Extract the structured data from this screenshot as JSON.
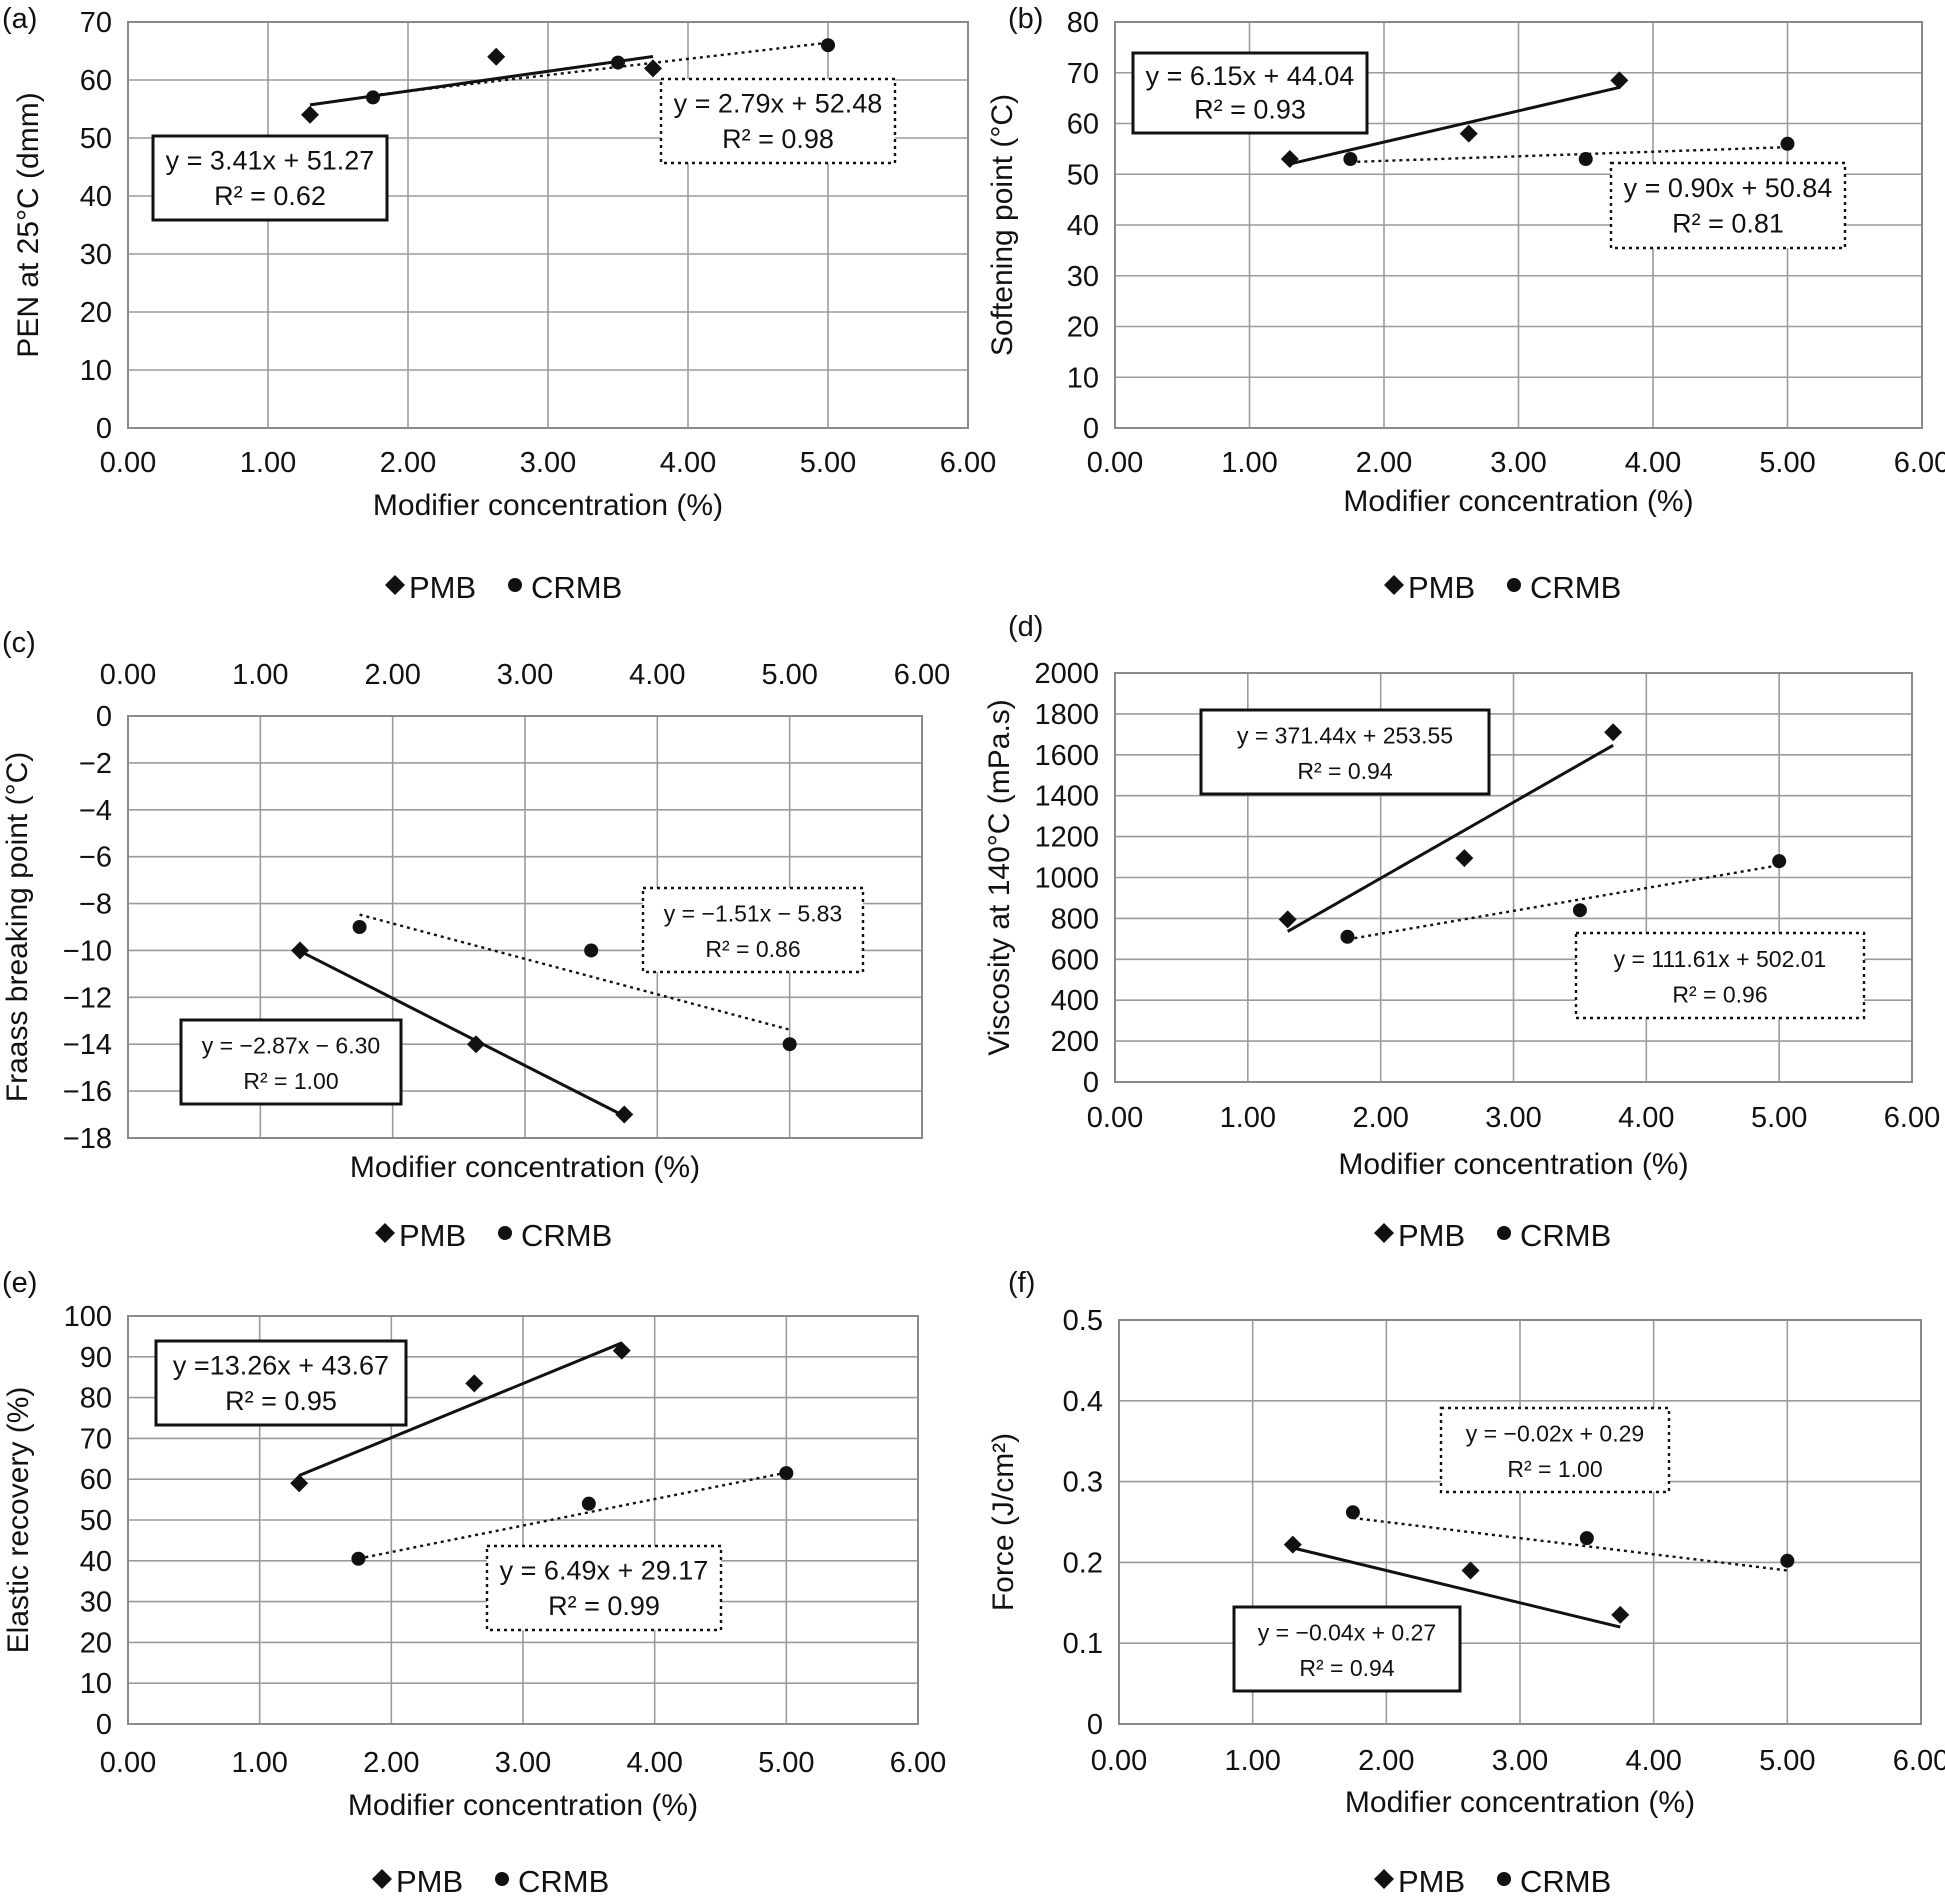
{
  "legend": {
    "pmb_label": "PMB",
    "crmb_label": "CRMB",
    "pmb_marker": "◆",
    "crmb_marker": "●"
  },
  "chart_data": [
    {
      "panel": "(a)",
      "type": "scatter",
      "xlabel": "Modifier concentration (%)",
      "ylabel": "PEN at 25°C (dmm)",
      "xlim": [
        0,
        6
      ],
      "ylim": [
        0,
        70
      ],
      "x_axis_position": "bottom",
      "grid": true,
      "legend_position": "bottom",
      "x_ticks": [
        "0.00",
        "1.00",
        "2.00",
        "3.00",
        "4.00",
        "5.00",
        "6.00"
      ],
      "y_ticks": [
        "0",
        "10",
        "20",
        "30",
        "40",
        "50",
        "60",
        "70"
      ],
      "series": [
        {
          "name": "PMB",
          "marker": "diamond",
          "x": [
            1.3,
            2.63,
            3.75
          ],
          "y": [
            54,
            64,
            62
          ],
          "trend": {
            "line": "solid",
            "eq": "y = 3.41x + 51.27",
            "r2": "R² = 0.62",
            "slope": 3.41,
            "intercept": 51.27,
            "x": [
              1.3,
              3.75
            ]
          }
        },
        {
          "name": "CRMB",
          "marker": "circle",
          "x": [
            1.75,
            3.5,
            5.0
          ],
          "y": [
            57,
            63,
            66
          ],
          "trend": {
            "line": "dotted",
            "eq": "y = 2.79x + 52.48",
            "r2": "R² = 0.98",
            "slope": 2.79,
            "intercept": 52.48,
            "x": [
              1.75,
              5.0
            ]
          }
        }
      ]
    },
    {
      "panel": "(b)",
      "type": "scatter",
      "xlabel": "Modifier concentration (%)",
      "ylabel": "Softening point (°C)",
      "xlim": [
        0,
        6
      ],
      "ylim": [
        0,
        80
      ],
      "x_axis_position": "bottom",
      "grid": true,
      "legend_position": "bottom",
      "x_ticks": [
        "0.00",
        "1.00",
        "2.00",
        "3.00",
        "4.00",
        "5.00",
        "6.00"
      ],
      "y_ticks": [
        "0",
        "10",
        "20",
        "30",
        "40",
        "50",
        "60",
        "70",
        "80"
      ],
      "series": [
        {
          "name": "PMB",
          "marker": "diamond",
          "x": [
            1.3,
            2.63,
            3.75
          ],
          "y": [
            53,
            58,
            68.5
          ],
          "trend": {
            "line": "solid",
            "eq": "y = 6.15x + 44.04",
            "r2": "R² = 0.93",
            "slope": 6.15,
            "intercept": 44.04,
            "x": [
              1.3,
              3.75
            ]
          }
        },
        {
          "name": "CRMB",
          "marker": "circle",
          "x": [
            1.75,
            3.5,
            5.0
          ],
          "y": [
            53,
            53,
            56
          ],
          "trend": {
            "line": "dotted",
            "eq": "y = 0.90x + 50.84",
            "r2": "R² = 0.81",
            "slope": 0.9,
            "intercept": 50.84,
            "x": [
              1.75,
              5.0
            ]
          }
        }
      ]
    },
    {
      "panel": "(c)",
      "type": "scatter",
      "xlabel": "Modifier concentration (%)",
      "ylabel": "Fraass breaking point (°C)",
      "xlim": [
        0,
        6
      ],
      "ylim": [
        -18,
        0
      ],
      "x_axis_position": "top",
      "grid": true,
      "legend_position": "bottom",
      "x_ticks": [
        "0.00",
        "1.00",
        "2.00",
        "3.00",
        "4.00",
        "5.00",
        "6.00"
      ],
      "y_ticks": [
        "0",
        "−2",
        "−4",
        "−6",
        "−8",
        "−10",
        "−12",
        "−14",
        "−16",
        "−18"
      ],
      "series": [
        {
          "name": "PMB",
          "marker": "diamond",
          "x": [
            1.3,
            2.63,
            3.75
          ],
          "y": [
            -10,
            -14,
            -17
          ],
          "trend": {
            "line": "solid",
            "eq": "y = −2.87x − 6.30",
            "r2": "R² = 1.00",
            "slope": -2.87,
            "intercept": -6.3,
            "x": [
              1.3,
              3.75
            ]
          }
        },
        {
          "name": "CRMB",
          "marker": "circle",
          "x": [
            1.75,
            3.5,
            5.0
          ],
          "y": [
            -9,
            -10,
            -14
          ],
          "trend": {
            "line": "dotted",
            "eq": "y = −1.51x − 5.83",
            "r2": "R² = 0.86",
            "slope": -1.51,
            "intercept": -5.83,
            "x": [
              1.75,
              5.0
            ]
          }
        }
      ]
    },
    {
      "panel": "(d)",
      "type": "scatter",
      "xlabel": "Modifier concentration (%)",
      "ylabel": "Viscosity at 140°C (mPa.s)",
      "xlim": [
        0,
        6
      ],
      "ylim": [
        0,
        2000
      ],
      "x_axis_position": "bottom",
      "grid": true,
      "legend_position": "bottom",
      "x_ticks": [
        "0.00",
        "1.00",
        "2.00",
        "3.00",
        "4.00",
        "5.00",
        "6.00"
      ],
      "y_ticks": [
        "0",
        "200",
        "400",
        "600",
        "800",
        "1000",
        "1200",
        "1400",
        "1600",
        "1800",
        "2000"
      ],
      "series": [
        {
          "name": "PMB",
          "marker": "diamond",
          "x": [
            1.3,
            2.63,
            3.75
          ],
          "y": [
            795,
            1095,
            1710
          ],
          "trend": {
            "line": "solid",
            "eq": "y = 371.44x + 253.55",
            "r2": "R² = 0.94",
            "slope": 371.44,
            "intercept": 253.55,
            "x": [
              1.3,
              3.75
            ]
          }
        },
        {
          "name": "CRMB",
          "marker": "circle",
          "x": [
            1.75,
            3.5,
            5.0
          ],
          "y": [
            710,
            840,
            1080
          ],
          "trend": {
            "line": "dotted",
            "eq": "y = 111.61x + 502.01",
            "r2": "R² = 0.96",
            "slope": 111.61,
            "intercept": 502.01,
            "x": [
              1.75,
              5.0
            ]
          }
        }
      ]
    },
    {
      "panel": "(e)",
      "type": "scatter",
      "xlabel": "Modifier concentration (%)",
      "ylabel": "Elastic recovery (%)",
      "xlim": [
        0,
        6
      ],
      "ylim": [
        0,
        100
      ],
      "x_axis_position": "bottom",
      "grid": true,
      "legend_position": "bottom",
      "x_ticks": [
        "0.00",
        "1.00",
        "2.00",
        "3.00",
        "4.00",
        "5.00",
        "6.00"
      ],
      "y_ticks": [
        "0",
        "10",
        "20",
        "30",
        "40",
        "50",
        "60",
        "70",
        "80",
        "90",
        "100"
      ],
      "series": [
        {
          "name": "PMB",
          "marker": "diamond",
          "x": [
            1.3,
            2.63,
            3.75
          ],
          "y": [
            59,
            83.5,
            91.5
          ],
          "trend": {
            "line": "solid",
            "eq": "y =13.26x + 43.67",
            "r2": "R² = 0.95",
            "slope": 13.26,
            "intercept": 43.67,
            "x": [
              1.3,
              3.75
            ]
          }
        },
        {
          "name": "CRMB",
          "marker": "circle",
          "x": [
            1.75,
            3.5,
            5.0
          ],
          "y": [
            40.5,
            54,
            61.5
          ],
          "trend": {
            "line": "dotted",
            "eq": "y = 6.49x + 29.17",
            "r2": "R² = 0.99",
            "slope": 6.49,
            "intercept": 29.17,
            "x": [
              1.75,
              5.0
            ]
          }
        }
      ]
    },
    {
      "panel": "(f)",
      "type": "scatter",
      "xlabel": "Modifier concentration (%)",
      "ylabel": "Force (J/cm²)",
      "xlim": [
        0,
        6
      ],
      "ylim": [
        0,
        0.5
      ],
      "x_axis_position": "bottom",
      "grid": true,
      "legend_position": "bottom",
      "x_ticks": [
        "0.00",
        "1.00",
        "2.00",
        "3.00",
        "4.00",
        "5.00",
        "6.00"
      ],
      "y_ticks": [
        "0",
        "0.1",
        "0.2",
        "0.3",
        "0.4",
        "0.5"
      ],
      "series": [
        {
          "name": "PMB",
          "marker": "diamond",
          "x": [
            1.3,
            2.63,
            3.75
          ],
          "y": [
            0.222,
            0.19,
            0.135
          ],
          "trend": {
            "line": "solid",
            "eq": "y = −0.04x + 0.27",
            "r2": "R² = 0.94",
            "slope": -0.04,
            "intercept": 0.27,
            "x": [
              1.3,
              3.75
            ]
          }
        },
        {
          "name": "CRMB",
          "marker": "circle",
          "x": [
            1.75,
            3.5,
            5.0
          ],
          "y": [
            0.262,
            0.23,
            0.202
          ],
          "trend": {
            "line": "dotted",
            "eq": "y = −0.02x + 0.29",
            "r2": "R² = 1.00",
            "slope": -0.02,
            "intercept": 0.29,
            "x": [
              1.75,
              5.0
            ]
          }
        }
      ]
    }
  ]
}
